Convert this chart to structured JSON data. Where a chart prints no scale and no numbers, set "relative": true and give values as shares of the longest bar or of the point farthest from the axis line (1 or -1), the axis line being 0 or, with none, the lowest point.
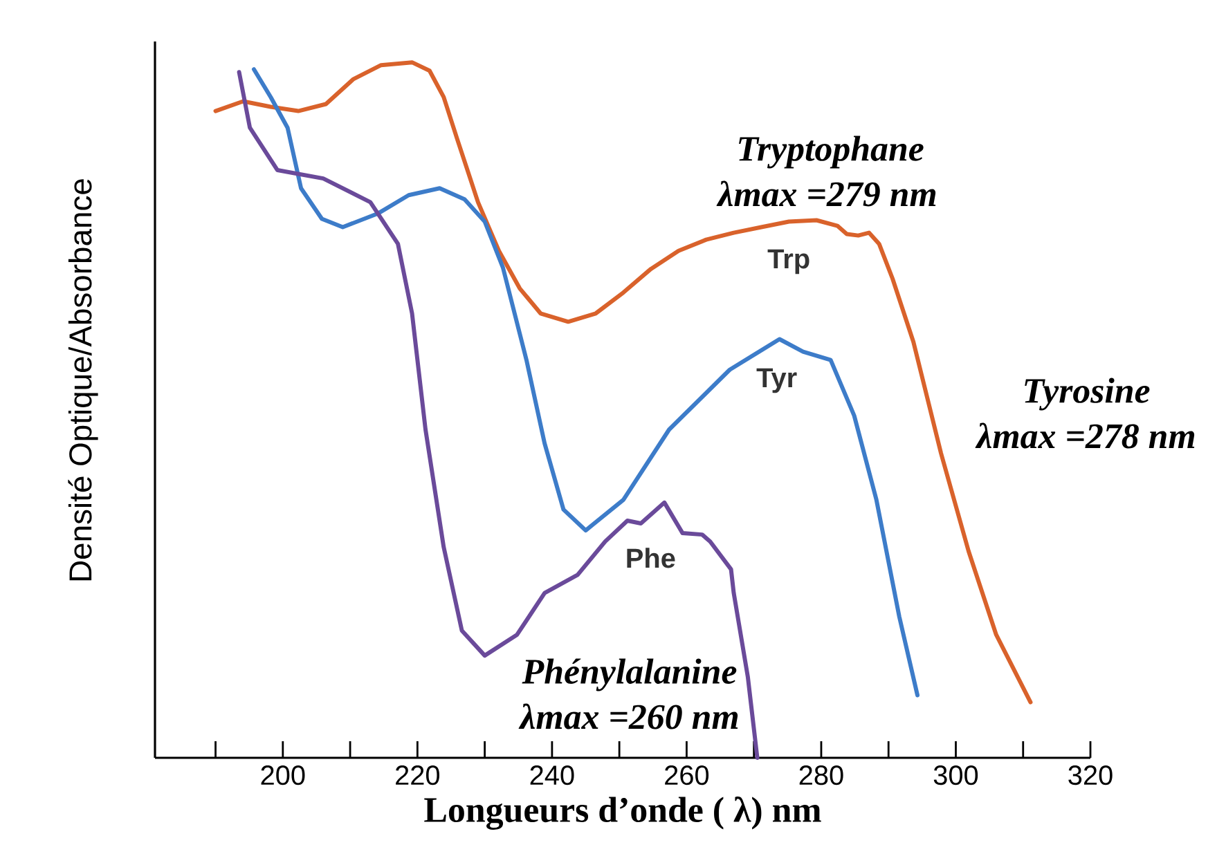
{
  "chart_data": {
    "type": "line",
    "relative": true,
    "legend": false,
    "tick_labels": "x",
    "xlabel": "Longueurs d’onde ( λ) nm",
    "ylabel": "Densité Optique/Absorbance",
    "xlim": [
      181,
      320
    ],
    "xticks": [
      {
        "value": 190,
        "label": null
      },
      200,
      {
        "value": 210,
        "label": null
      },
      220,
      {
        "value": 230,
        "label": null
      },
      240,
      {
        "value": 250,
        "label": null
      },
      260,
      {
        "value": 270,
        "label": null
      },
      280,
      {
        "value": 290,
        "label": null
      },
      300,
      {
        "value": 310,
        "label": null
      },
      320
    ],
    "annotations": [
      "Tryptophane",
      "λmax =279 nm",
      "Tyrosine",
      "λmax =278 nm",
      "Phénylalanine",
      "λmax =260 nm"
    ],
    "series": [
      {
        "name": "Trp",
        "color": "#d9622b",
        "x": [
          190,
          194.1,
          198.2,
          202.3,
          206.4,
          210.5,
          214.6,
          219.2,
          221.8,
          223.9,
          225.9,
          229.0,
          232.1,
          235.2,
          238.3,
          242.4,
          246.5,
          250.6,
          254.7,
          258.8,
          262.9,
          267.0,
          271.1,
          275.2,
          279.3,
          282.4,
          283.8,
          285.5,
          287.1,
          288.6,
          290.6,
          293.7,
          297.8,
          301.9,
          306.0,
          311.1
        ],
        "values": [
          0.93,
          0.944,
          0.936,
          0.93,
          0.94,
          0.976,
          0.996,
          1,
          0.988,
          0.95,
          0.89,
          0.799,
          0.729,
          0.675,
          0.639,
          0.627,
          0.639,
          0.669,
          0.703,
          0.729,
          0.745,
          0.755,
          0.763,
          0.771,
          0.773,
          0.765,
          0.753,
          0.751,
          0.755,
          0.739,
          0.689,
          0.598,
          0.438,
          0.297,
          0.177,
          0.08
        ]
      },
      {
        "name": "Tyr",
        "color": "#3d7cc9",
        "x": [
          195.7,
          198.2,
          200.7,
          202.7,
          205.8,
          208.9,
          214.2,
          218.7,
          223.3,
          227.0,
          230.0,
          232.7,
          236.2,
          238.9,
          241.7,
          245.0,
          250.6,
          257.4,
          266.4,
          273.8,
          277.3,
          281.4,
          284.9,
          288.2,
          291.6,
          294.3
        ],
        "values": [
          0.99,
          0.95,
          0.906,
          0.819,
          0.775,
          0.763,
          0.783,
          0.809,
          0.819,
          0.803,
          0.771,
          0.705,
          0.572,
          0.452,
          0.357,
          0.327,
          0.371,
          0.472,
          0.558,
          0.602,
          0.584,
          0.572,
          0.492,
          0.371,
          0.203,
          0.09
        ]
      },
      {
        "name": "Phe",
        "color": "#6a4a9a",
        "x": [
          193.5,
          195.1,
          199.2,
          206.0,
          213.0,
          217.1,
          219.2,
          221.2,
          223.9,
          226.6,
          230.0,
          234.8,
          238.9,
          243.8,
          247.9,
          251.2,
          253.2,
          256.7,
          259.4,
          262.3,
          263.5,
          266.6,
          267.0,
          269.1,
          270.5
        ],
        "values": [
          0.986,
          0.906,
          0.845,
          0.833,
          0.799,
          0.739,
          0.639,
          0.472,
          0.303,
          0.183,
          0.147,
          0.177,
          0.237,
          0.263,
          0.311,
          0.341,
          0.337,
          0.367,
          0.323,
          0.321,
          0.311,
          0.271,
          0.237,
          0.116,
          0
        ]
      }
    ]
  }
}
